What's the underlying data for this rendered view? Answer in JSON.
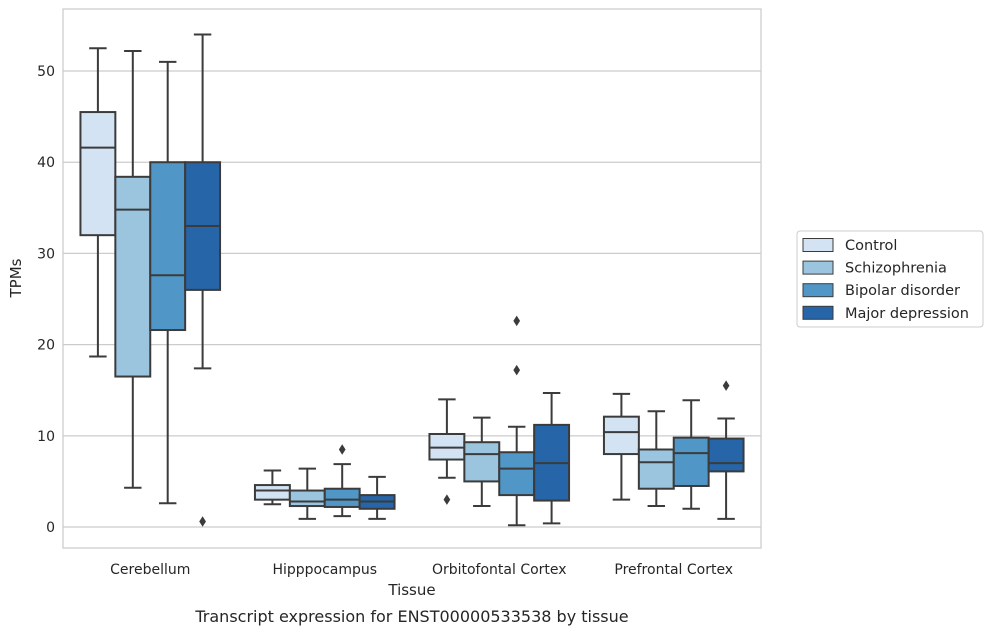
{
  "caption": "Transcript expression for ENST00000533538 by tissue",
  "chart_data": {
    "type": "box",
    "xlabel": "Tissue",
    "ylabel": "TPMs",
    "ylim": [
      -2.3,
      56.8
    ],
    "yticks": [
      0,
      10,
      20,
      30,
      40,
      50
    ],
    "grid": "horizontal",
    "legend_position": "right",
    "categories": [
      "Cerebellum",
      "Hipppocampus",
      "Orbitofontal Cortex",
      "Prefrontal Cortex"
    ],
    "series": [
      {
        "name": "Control",
        "color": "#d4e3f3",
        "boxes": [
          {
            "whisker_low": 18.7,
            "q1": 32.0,
            "median": 41.6,
            "q3": 45.5,
            "whisker_high": 52.5,
            "outliers": []
          },
          {
            "whisker_low": 2.5,
            "q1": 3.0,
            "median": 4.0,
            "q3": 4.6,
            "whisker_high": 6.2,
            "outliers": []
          },
          {
            "whisker_low": 5.4,
            "q1": 7.4,
            "median": 8.7,
            "q3": 10.2,
            "whisker_high": 14.0,
            "outliers": [
              3.0
            ]
          },
          {
            "whisker_low": 3.0,
            "q1": 8.0,
            "median": 10.4,
            "q3": 12.1,
            "whisker_high": 14.6,
            "outliers": []
          }
        ]
      },
      {
        "name": "Schizophrenia",
        "color": "#9bc5de",
        "boxes": [
          {
            "whisker_low": 4.3,
            "q1": 16.5,
            "median": 34.8,
            "q3": 38.4,
            "whisker_high": 52.2,
            "outliers": []
          },
          {
            "whisker_low": 0.9,
            "q1": 2.3,
            "median": 2.8,
            "q3": 4.0,
            "whisker_high": 6.4,
            "outliers": []
          },
          {
            "whisker_low": 2.3,
            "q1": 5.0,
            "median": 8.0,
            "q3": 9.3,
            "whisker_high": 12.0,
            "outliers": []
          },
          {
            "whisker_low": 2.3,
            "q1": 4.2,
            "median": 7.1,
            "q3": 8.5,
            "whisker_high": 12.7,
            "outliers": []
          }
        ]
      },
      {
        "name": "Bipolar disorder",
        "color": "#5096c7",
        "boxes": [
          {
            "whisker_low": 2.6,
            "q1": 21.6,
            "median": 27.6,
            "q3": 40.0,
            "whisker_high": 51.0,
            "outliers": []
          },
          {
            "whisker_low": 1.2,
            "q1": 2.2,
            "median": 3.0,
            "q3": 4.2,
            "whisker_high": 6.9,
            "outliers": [
              8.5
            ]
          },
          {
            "whisker_low": 0.2,
            "q1": 3.5,
            "median": 6.4,
            "q3": 8.2,
            "whisker_high": 11.0,
            "outliers": [
              22.6,
              17.2
            ]
          },
          {
            "whisker_low": 2.0,
            "q1": 4.5,
            "median": 8.1,
            "q3": 9.8,
            "whisker_high": 13.9,
            "outliers": []
          }
        ]
      },
      {
        "name": "Major depression",
        "color": "#2565a8",
        "boxes": [
          {
            "whisker_low": 17.4,
            "q1": 26.0,
            "median": 33.0,
            "q3": 40.0,
            "whisker_high": 54.0,
            "outliers": [
              0.6
            ]
          },
          {
            "whisker_low": 0.9,
            "q1": 2.0,
            "median": 2.8,
            "q3": 3.5,
            "whisker_high": 5.5,
            "outliers": []
          },
          {
            "whisker_low": 0.4,
            "q1": 2.9,
            "median": 7.0,
            "q3": 11.2,
            "whisker_high": 14.7,
            "outliers": []
          },
          {
            "whisker_low": 0.9,
            "q1": 6.1,
            "median": 7.0,
            "q3": 9.7,
            "whisker_high": 11.9,
            "outliers": [
              15.5
            ]
          }
        ]
      }
    ]
  }
}
